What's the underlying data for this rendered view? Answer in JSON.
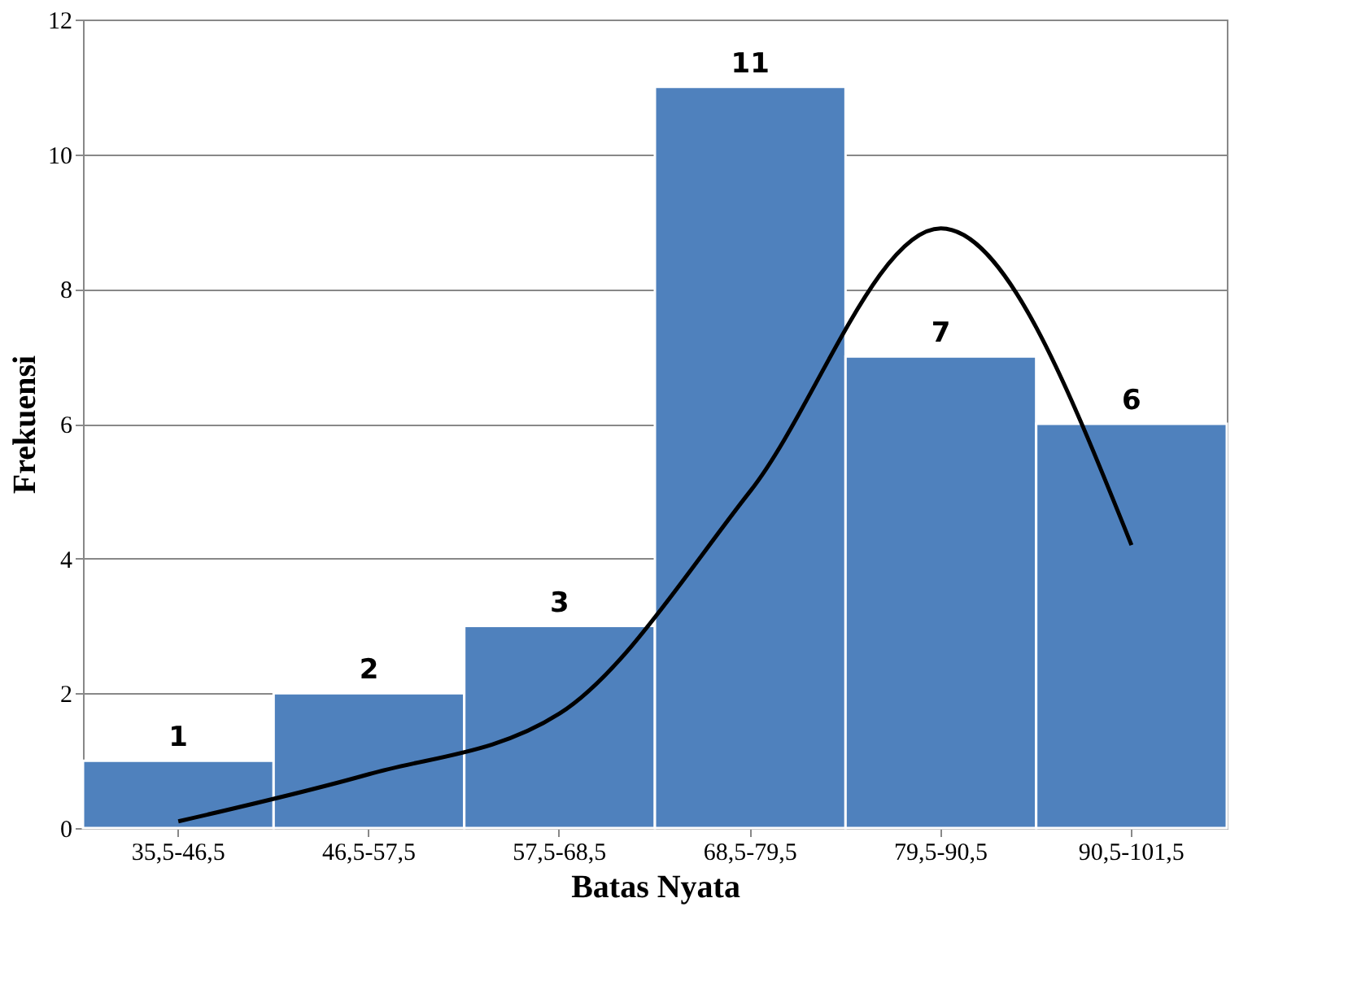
{
  "chart_data": {
    "type": "bar",
    "xlabel": "Batas Nyata",
    "ylabel": "Frekuensi",
    "categories": [
      "35,5-46,5",
      "46,5-57,5",
      "57,5-68,5",
      "68,5-79,5",
      "79,5-90,5",
      "90,5-101,5"
    ],
    "values": [
      1,
      2,
      3,
      11,
      7,
      6
    ],
    "color": "#4f81bd",
    "value_labels": [
      "1",
      "2",
      "3",
      "11",
      "7",
      "6"
    ],
    "ylim": [
      0,
      12
    ],
    "yticks": [
      0,
      2,
      4,
      6,
      8,
      10,
      12
    ],
    "grid": "y",
    "series": [
      {
        "type": "line",
        "color": "#000000",
        "values": [
          0.1,
          0.8,
          1.7,
          5,
          8.9,
          4.2
        ]
      }
    ]
  }
}
